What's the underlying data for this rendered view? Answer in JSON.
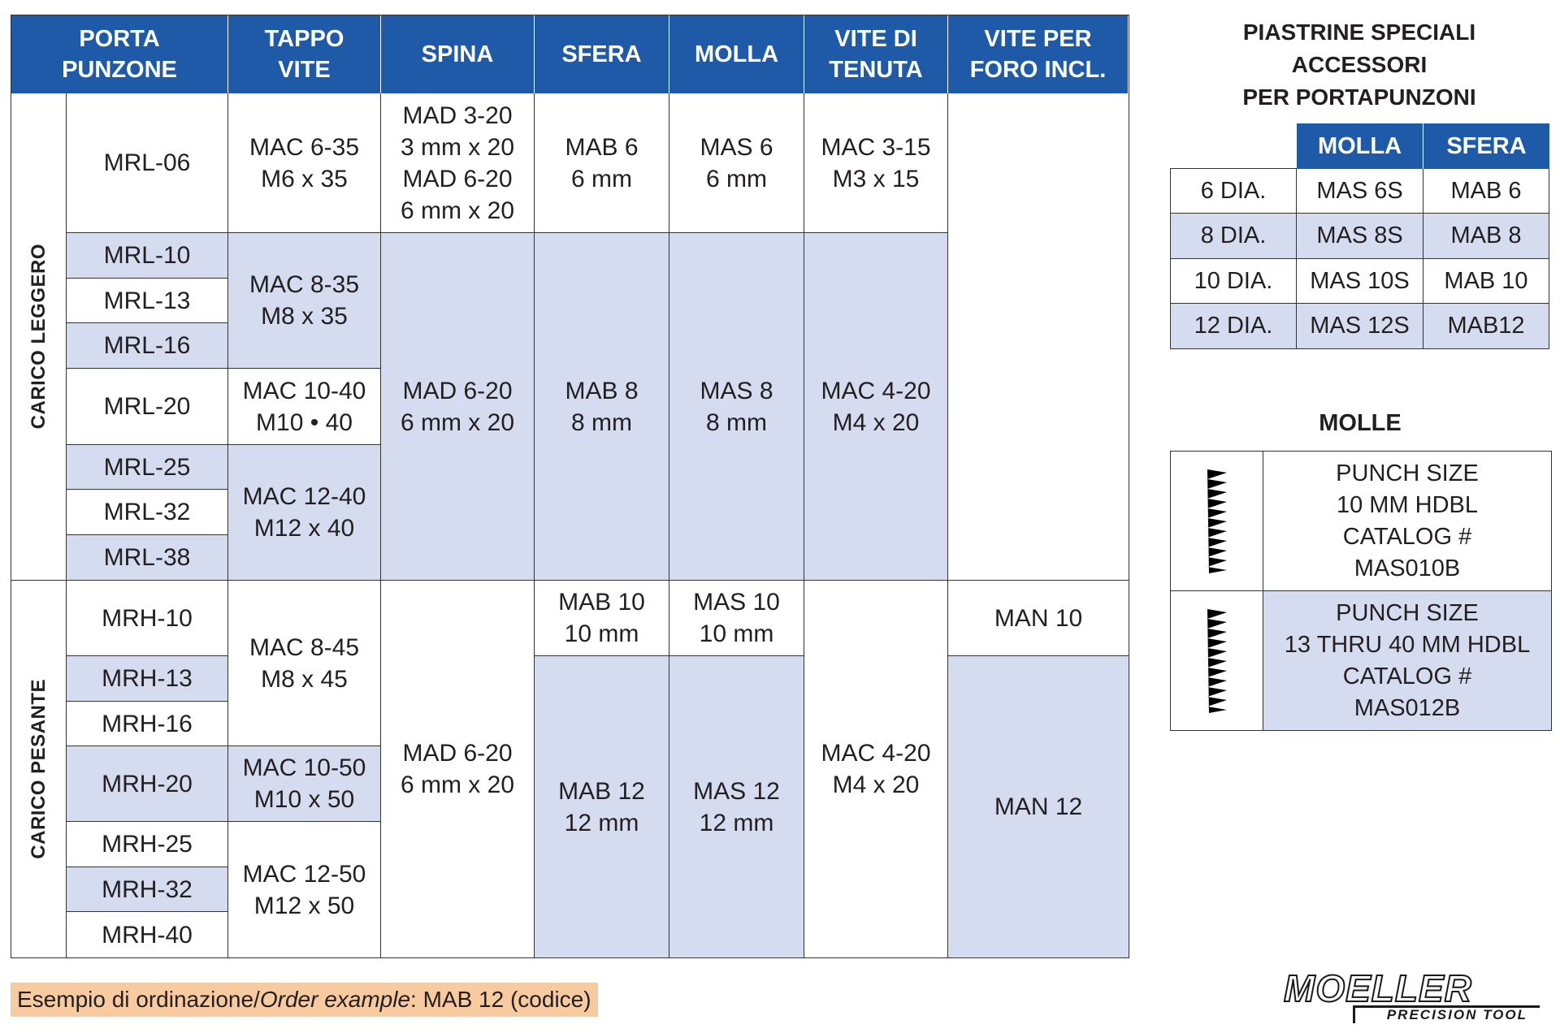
{
  "main_table": {
    "headers": {
      "porta_punzone": [
        "PORTA",
        "PUNZONE"
      ],
      "tappo_vite": [
        "TAPPO",
        "VITE"
      ],
      "spina": [
        "SPINA"
      ],
      "sfera": [
        "SFERA"
      ],
      "molla": [
        "MOLLA"
      ],
      "vite_di_tenuta": [
        "VITE DI",
        "TENUTA"
      ],
      "vite_per_foro": [
        "VITE PER",
        "FORO INCL."
      ]
    },
    "group_light": "CARICO LEGGERO",
    "group_heavy": "CARICO PESANTE",
    "light": {
      "holders": [
        "MRL-06",
        "MRL-10",
        "MRL-13",
        "MRL-16",
        "MRL-20",
        "MRL-25",
        "MRL-32",
        "MRL-38"
      ],
      "tappo": [
        [
          "MAC 6-35",
          "M6 x 35"
        ],
        [
          "MAC 8-35",
          "M8 x 35"
        ],
        [
          "MAC 10-40",
          "M10 • 40"
        ],
        [
          "MAC 12-40",
          "M12 x 40"
        ]
      ],
      "spina": [
        [
          "MAD 3-20",
          "3 mm x 20",
          "MAD 6-20",
          "6 mm x 20"
        ],
        [
          "MAD 6-20",
          "6 mm x 20"
        ]
      ],
      "sfera": [
        [
          "MAB 6",
          "6 mm"
        ],
        [
          "MAB 8",
          "8 mm"
        ]
      ],
      "molla": [
        [
          "MAS 6",
          "6 mm"
        ],
        [
          "MAS 8",
          "8 mm"
        ]
      ],
      "tenuta": [
        [
          "MAC 3-15",
          "M3 x 15"
        ],
        [
          "MAC 4-20",
          "M4 x 20"
        ]
      ]
    },
    "heavy": {
      "holders": [
        "MRH-10",
        "MRH-13",
        "MRH-16",
        "MRH-20",
        "MRH-25",
        "MRH-32",
        "MRH-40"
      ],
      "tappo": [
        [
          "MAC 8-45",
          "M8 x 45"
        ],
        [
          "MAC 10-50",
          "M10 x 50"
        ],
        [
          "MAC 12-50",
          "M12 x 50"
        ]
      ],
      "spina": [
        [
          "MAD 6-20",
          "6 mm x 20"
        ]
      ],
      "sfera": [
        [
          "MAB 10",
          "10 mm"
        ],
        [
          "MAB 12",
          "12 mm"
        ]
      ],
      "molla": [
        [
          "MAS 10",
          "10 mm"
        ],
        [
          "MAS 12",
          "12 mm"
        ]
      ],
      "tenuta": [
        [
          "MAC 4-20",
          "M4 x 20"
        ]
      ],
      "foro": [
        "MAN 10",
        "MAN 12"
      ]
    }
  },
  "accessories": {
    "title": [
      "PIASTRINE SPECIALI",
      "ACCESSORI",
      "PER PORTAPUNZONI"
    ],
    "headers": [
      "MOLLA",
      "SFERA"
    ],
    "rows": [
      {
        "size": "6 DIA.",
        "molla": "MAS 6S",
        "sfera": "MAB 6"
      },
      {
        "size": "8 DIA.",
        "molla": "MAS 8S",
        "sfera": "MAB 8"
      },
      {
        "size": "10 DIA.",
        "molla": "MAS 10S",
        "sfera": "MAB 10"
      },
      {
        "size": "12 DIA.",
        "molla": "MAS 12S",
        "sfera": "MAB12"
      }
    ]
  },
  "molle": {
    "title": "MOLLE",
    "items": [
      {
        "lines": [
          "PUNCH SIZE",
          "10 MM HDBL",
          "CATALOG #",
          "MAS010B"
        ]
      },
      {
        "lines": [
          "PUNCH SIZE",
          "13 THRU 40 MM HDBL",
          "CATALOG #",
          "MAS012B"
        ]
      }
    ]
  },
  "footer": {
    "prefix": "Esempio di ordinazione/",
    "italic": "Order example",
    "suffix": ": MAB 12 (codice)"
  },
  "logo": {
    "name": "MOELLER",
    "tagline": "PRECISION TOOL"
  },
  "colors": {
    "header_blue": "#1f5aa8",
    "row_shade": "#d6dcf0",
    "note_bg": "#f7caa0"
  }
}
